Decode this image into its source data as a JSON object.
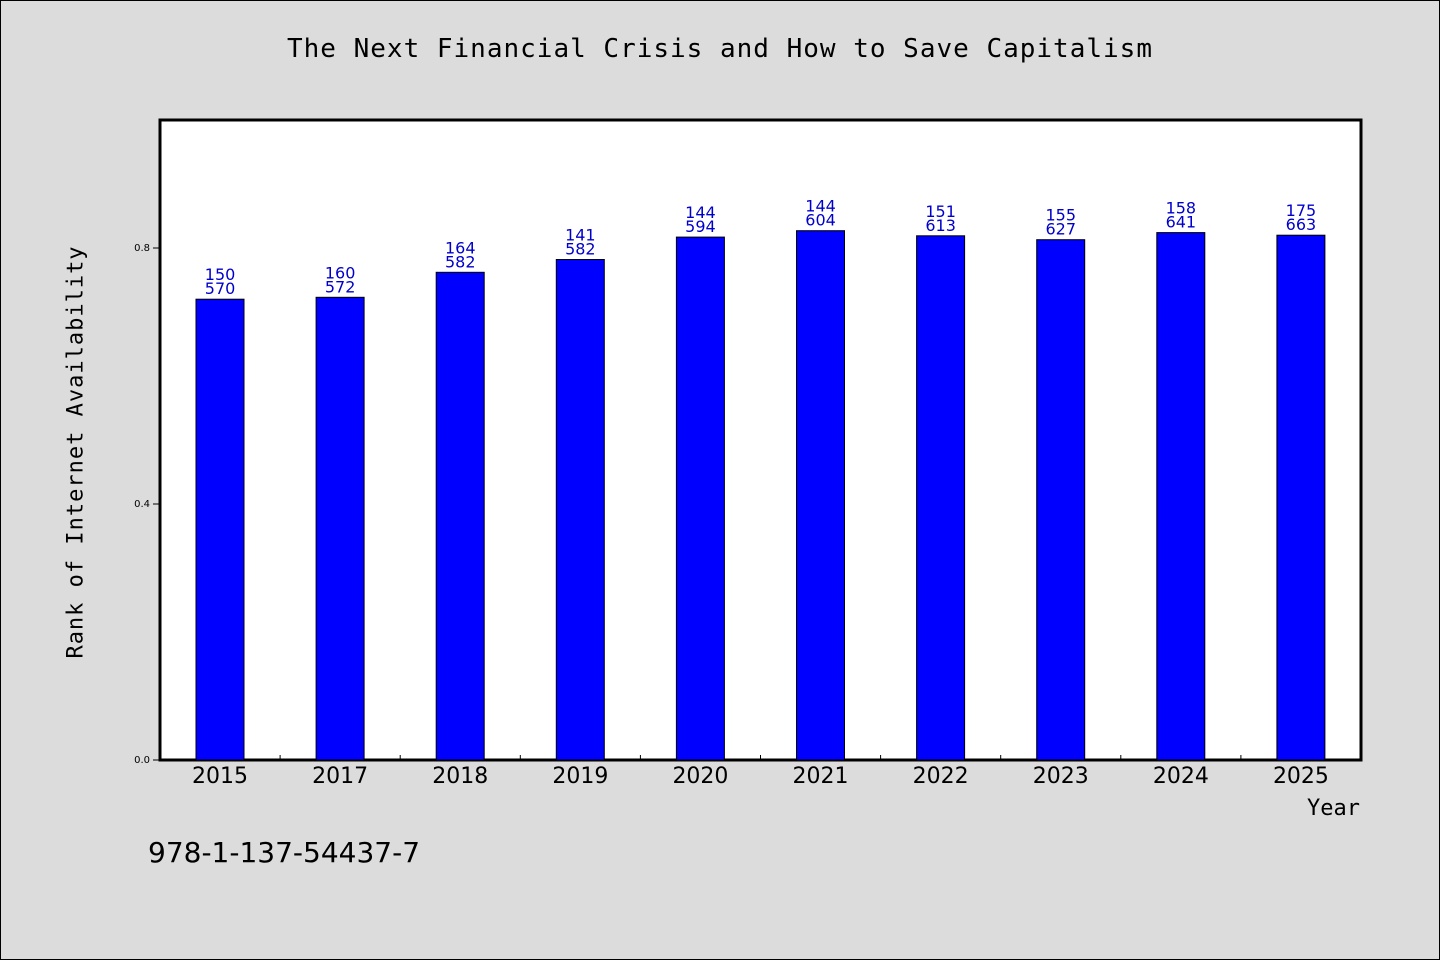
{
  "chart_data": {
    "type": "bar",
    "title": "The Next Financial Crisis and How to Save Capitalism",
    "xlabel": "Year",
    "ylabel": "Rank of Internet Availability",
    "categories": [
      "2015",
      "2017",
      "2018",
      "2019",
      "2020",
      "2021",
      "2022",
      "2023",
      "2024",
      "2025"
    ],
    "values": [
      0.72,
      0.723,
      0.762,
      0.782,
      0.817,
      0.827,
      0.819,
      0.813,
      0.824,
      0.82
    ],
    "label_top": [
      "150",
      "160",
      "164",
      "141",
      "144",
      "144",
      "151",
      "155",
      "158",
      "175"
    ],
    "label_bottom": [
      "570",
      "572",
      "582",
      "582",
      "594",
      "604",
      "613",
      "627",
      "641",
      "663"
    ],
    "ylim": [
      0,
      1.0
    ],
    "yticks": [
      0.0,
      0.4,
      0.8
    ],
    "ytick_labels": [
      "0.0",
      "0.4",
      "0.8"
    ],
    "grid": false,
    "bar_color": "#0000ff",
    "label_color": "#0000cc"
  },
  "footer": {
    "code": "978-1-137-54437-7"
  }
}
